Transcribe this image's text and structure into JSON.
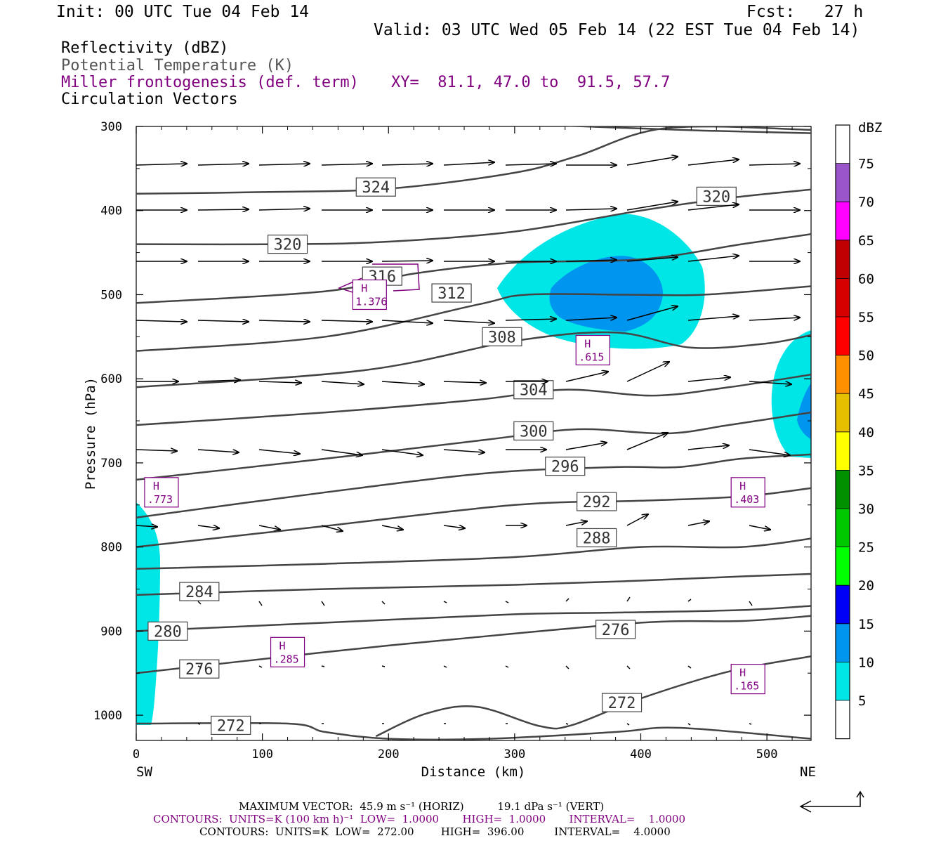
{
  "header": {
    "init": "Init: 00 UTC Tue 04 Feb 14",
    "fcst": "Fcst:   27 h",
    "valid": "Valid: 03 UTC Wed 05 Feb 14 (22 EST Tue 04 Feb 14)",
    "fields": [
      {
        "text": "Reflectivity (dBZ)",
        "color": "#000000"
      },
      {
        "text": "Potential Temperature (K)",
        "color": "#555555"
      },
      {
        "text": "Miller frontogenesis (def. term)",
        "color": "#800080"
      },
      {
        "text": "Circulation Vectors",
        "color": "#000000"
      }
    ],
    "xy": "XY=  81.1, 47.0 to  91.5, 57.7"
  },
  "colorbar": {
    "title": "dBZ",
    "levels": [
      "5",
      "10",
      "15",
      "20",
      "25",
      "30",
      "35",
      "40",
      "45",
      "50",
      "55",
      "60",
      "65",
      "70",
      "75"
    ],
    "colors": [
      "#ffffff",
      "#00e6e6",
      "#0096f0",
      "#0000f6",
      "#00ff00",
      "#00c800",
      "#009000",
      "#ffff00",
      "#e6c000",
      "#ff9000",
      "#ff0000",
      "#d60000",
      "#c00000",
      "#ff00ff",
      "#9955c9",
      "#ffffff"
    ]
  },
  "footer": {
    "max_vector": "MAXIMUM VECTOR:  45.9 m s⁻¹ (HORIZ)          19.1 dPa s⁻¹ (VERT)",
    "contours_purple": "CONTOURS:  UNITS=K (100 km h)⁻¹  LOW=  1.0000       HIGH=  1.0000       INTERVAL=    1.0000",
    "contours_black": "CONTOURS:  UNITS=K  LOW=  272.00        HIGH=  396.00         INTERVAL=    4.0000"
  },
  "chart_data": {
    "type": "cross-section",
    "xlabel": "Distance (km)",
    "ylabel": "Pressure (hPa)",
    "xlim": [
      0,
      535
    ],
    "ylim": [
      1030,
      300
    ],
    "x_ticks": [
      "0",
      "100",
      "200",
      "300",
      "400",
      "500"
    ],
    "y_ticks": [
      "300",
      "400",
      "500",
      "600",
      "700",
      "800",
      "900",
      "1000"
    ],
    "x_end_labels": {
      "left": "SW",
      "right": "NE"
    },
    "theta_contours": [
      {
        "label": "324",
        "label_at": [
          190,
          372
        ],
        "points": [
          [
            0,
            380
          ],
          [
            100,
            378
          ],
          [
            200,
            374
          ],
          [
            300,
            355
          ],
          [
            350,
            335
          ],
          [
            420,
            302
          ],
          [
            535,
            304
          ]
        ]
      },
      {
        "label": "320",
        "label_at": [
          120,
          440
        ],
        "points": [
          [
            0,
            440
          ],
          [
            120,
            440
          ],
          [
            200,
            437
          ],
          [
            300,
            425
          ],
          [
            400,
            400
          ],
          [
            470,
            385
          ],
          [
            535,
            375
          ]
        ]
      },
      {
        "label": "320",
        "label_at": [
          460,
          383
        ],
        "points": [
          [
            320,
            298
          ],
          [
            450,
            305
          ],
          [
            535,
            308
          ]
        ]
      },
      {
        "label": "316",
        "label_at": [
          195,
          478
        ],
        "points": [
          [
            0,
            510
          ],
          [
            150,
            496
          ],
          [
            220,
            475
          ],
          [
            300,
            462
          ],
          [
            400,
            458
          ],
          [
            480,
            440
          ],
          [
            535,
            428
          ]
        ]
      },
      {
        "label": "312",
        "label_at": [
          250,
          498
        ],
        "points": [
          [
            0,
            567
          ],
          [
            150,
            550
          ],
          [
            270,
            512
          ],
          [
            310,
            500
          ],
          [
            390,
            500
          ],
          [
            450,
            500
          ],
          [
            535,
            490
          ]
        ]
      },
      {
        "label": "308",
        "label_at": [
          290,
          550
        ],
        "points": [
          [
            0,
            610
          ],
          [
            180,
            590
          ],
          [
            300,
            555
          ],
          [
            380,
            545
          ],
          [
            440,
            563
          ],
          [
            500,
            558
          ],
          [
            535,
            548
          ]
        ]
      },
      {
        "label": "304",
        "label_at": [
          315,
          613
        ],
        "points": [
          [
            0,
            655
          ],
          [
            150,
            640
          ],
          [
            270,
            625
          ],
          [
            340,
            613
          ],
          [
            410,
            620
          ],
          [
            470,
            610
          ],
          [
            535,
            595
          ]
        ]
      },
      {
        "label": "300",
        "label_at": [
          315,
          662
        ],
        "points": [
          [
            0,
            720
          ],
          [
            150,
            695
          ],
          [
            280,
            672
          ],
          [
            350,
            660
          ],
          [
            420,
            665
          ],
          [
            470,
            655
          ],
          [
            535,
            640
          ]
        ]
      },
      {
        "label": "296",
        "label_at": [
          340,
          704
        ],
        "points": [
          [
            0,
            765
          ],
          [
            150,
            735
          ],
          [
            280,
            712
          ],
          [
            380,
            705
          ],
          [
            430,
            705
          ],
          [
            480,
            695
          ],
          [
            535,
            690
          ]
        ]
      },
      {
        "label": "292",
        "label_at": [
          365,
          746
        ],
        "points": [
          [
            0,
            800
          ],
          [
            150,
            775
          ],
          [
            300,
            750
          ],
          [
            400,
            745
          ],
          [
            480,
            740
          ],
          [
            535,
            730
          ]
        ]
      },
      {
        "label": "288",
        "label_at": [
          365,
          789
        ],
        "points": [
          [
            0,
            826
          ],
          [
            150,
            820
          ],
          [
            300,
            812
          ],
          [
            400,
            800
          ],
          [
            480,
            800
          ],
          [
            535,
            790
          ]
        ]
      },
      {
        "label": "284",
        "label_at": [
          50,
          853
        ],
        "points": [
          [
            0,
            857
          ],
          [
            150,
            850
          ],
          [
            300,
            845
          ],
          [
            400,
            840
          ],
          [
            480,
            835
          ],
          [
            535,
            832
          ]
        ]
      },
      {
        "label": "280",
        "label_at": [
          25,
          900
        ],
        "points": [
          [
            0,
            900
          ],
          [
            150,
            890
          ],
          [
            300,
            880
          ],
          [
            380,
            878
          ],
          [
            480,
            875
          ],
          [
            535,
            870
          ]
        ]
      },
      {
        "label": "276",
        "label_at": [
          380,
          898
        ],
        "points": [
          [
            0,
            950
          ],
          [
            150,
            925
          ],
          [
            250,
            910
          ],
          [
            400,
            890
          ],
          [
            480,
            888
          ],
          [
            535,
            882
          ]
        ]
      },
      {
        "label": "276",
        "label_at": [
          50,
          945
        ],
        "points": []
      },
      {
        "label": "272",
        "label_at": [
          385,
          985
        ],
        "points": [
          [
            0,
            1010
          ],
          [
            120,
            1010
          ],
          [
            150,
            1020
          ],
          [
            200,
            1028
          ],
          [
            280,
            1028
          ],
          [
            380,
            1020
          ],
          [
            430,
            1015
          ],
          [
            535,
            1028
          ]
        ]
      },
      {
        "label": "272",
        "label_at": [
          75,
          1012
        ],
        "points": [
          [
            190,
            1025
          ],
          [
            230,
            998
          ],
          [
            270,
            990
          ],
          [
            320,
            1013
          ],
          [
            345,
            1012
          ],
          [
            400,
            980
          ],
          [
            470,
            948
          ],
          [
            535,
            930
          ]
        ]
      }
    ],
    "frontogenesis_highs": [
      {
        "label": "H",
        "value": "1.376",
        "at": [
          185,
          500
        ]
      },
      {
        "label": "H",
        "value": ".615",
        "at": [
          362,
          566
        ]
      },
      {
        "label": "H",
        "value": ".773",
        "at": [
          20,
          735
        ]
      },
      {
        "label": "H",
        "value": ".403",
        "at": [
          485,
          735
        ]
      },
      {
        "label": "H",
        "value": ".285",
        "at": [
          120,
          925
        ]
      },
      {
        "label": "H",
        "value": ".165",
        "at": [
          485,
          957
        ]
      }
    ]
  }
}
